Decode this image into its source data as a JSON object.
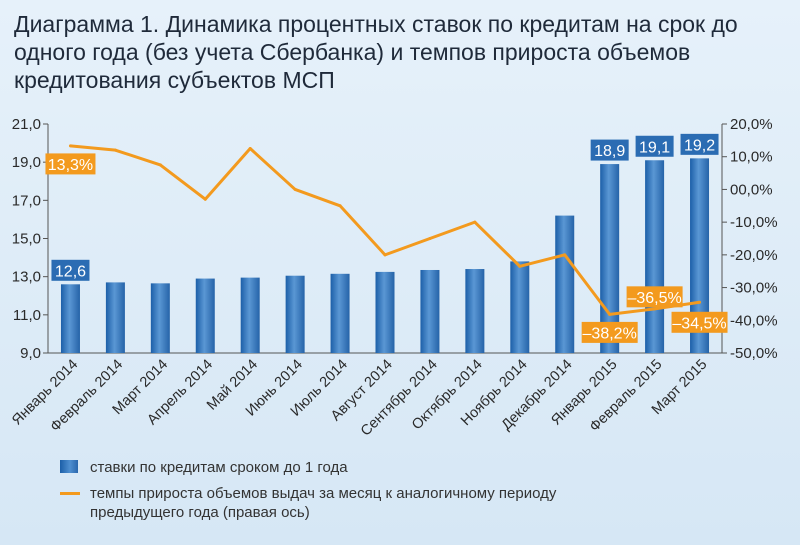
{
  "title": "Диаграмма 1. Динамика процентных ставок по кредитам на срок до одного года (без учета Сбербанка) и темпов прироста объемов кредитования субъектов МСП",
  "colors": {
    "bar": "#2a67ad",
    "line": "#f39a1e",
    "bar_label_bg": "#2b6cb3",
    "line_label_bg": "#f39a1e"
  },
  "chart_data": {
    "type": "bar",
    "categories": [
      "Январь 2014",
      "Февраль 2014",
      "Март 2014",
      "Апрель 2014",
      "Май 2014",
      "Июнь 2014",
      "Июль 2014",
      "Август 2014",
      "Сентябрь 2014",
      "Октябрь 2014",
      "Ноябрь 2014",
      "Декабрь 2014",
      "Январь 2015",
      "Февраль 2015",
      "Март 2015"
    ],
    "left_axis": {
      "ylim": [
        9.0,
        21.0
      ],
      "ticks": [
        "9,0",
        "11,0",
        "13,0",
        "15,0",
        "17,0",
        "19,0",
        "21,0"
      ]
    },
    "right_axis": {
      "ylim": [
        -50.0,
        20.0
      ],
      "ticks": [
        "-50,0%",
        "-40,0%",
        "-30,0%",
        "-20,0%",
        "-10,0%",
        "00,0%",
        "10,0%",
        "20,0%"
      ]
    },
    "series": [
      {
        "name": "ставки по кредитам сроком до 1 года",
        "type": "bar",
        "axis": "left",
        "values": [
          12.6,
          12.7,
          12.65,
          12.9,
          12.95,
          13.05,
          13.15,
          13.25,
          13.35,
          13.4,
          13.8,
          16.2,
          18.9,
          19.1,
          19.2
        ]
      },
      {
        "name": "темпы прироста объемов выдач за месяц к аналогичному периоду предыдущего года (правая ось)",
        "type": "line",
        "axis": "right",
        "values": [
          13.3,
          12.0,
          7.5,
          -3.0,
          12.5,
          0.0,
          -5.0,
          -20.0,
          -15.0,
          -10.0,
          -23.5,
          -20.0,
          -38.2,
          -36.5,
          -34.5
        ]
      }
    ],
    "data_labels": [
      {
        "series": 0,
        "index": 0,
        "text": "12,6"
      },
      {
        "series": 0,
        "index": 12,
        "text": "18,9"
      },
      {
        "series": 0,
        "index": 13,
        "text": "19,1"
      },
      {
        "series": 0,
        "index": 14,
        "text": "19,2"
      },
      {
        "series": 1,
        "index": 0,
        "text": "13,3%"
      },
      {
        "series": 1,
        "index": 12,
        "text": "–38,2%"
      },
      {
        "series": 1,
        "index": 13,
        "text": "–36,5%"
      },
      {
        "series": 1,
        "index": 14,
        "text": "–34,5%"
      }
    ]
  },
  "legend": {
    "bars": "ставки по кредитам сроком до 1 года",
    "line_1": "темпы прироста объемов выдач за месяц к аналогичному периоду",
    "line_2": "предыдущего года (правая ось)"
  }
}
